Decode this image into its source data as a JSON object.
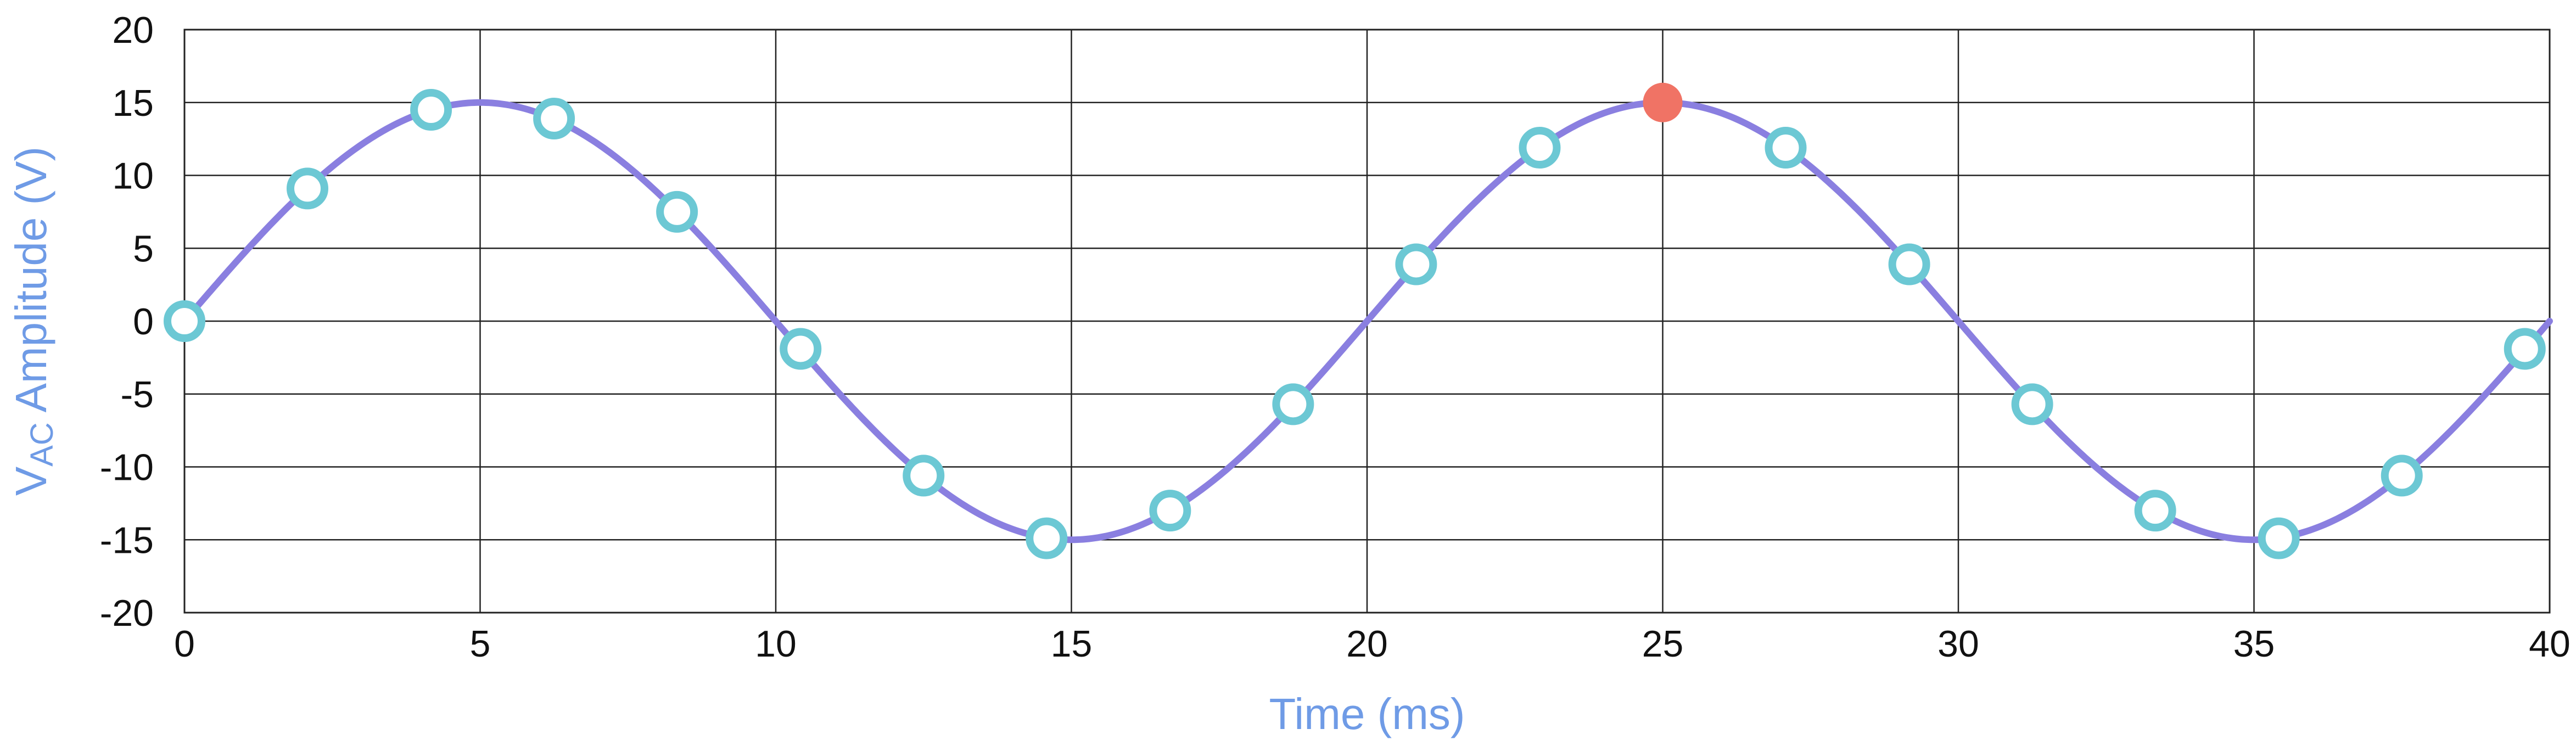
{
  "chart_data": {
    "type": "line",
    "title": "",
    "xlabel": "Time (ms)",
    "ylabel": {
      "main": "V",
      "subscript": "AC",
      "rest": " Amplitude (V)"
    },
    "xlim": [
      0,
      40
    ],
    "ylim": [
      -20,
      20
    ],
    "x_ticks": [
      0,
      5,
      10,
      15,
      20,
      25,
      30,
      35,
      40
    ],
    "y_ticks": [
      20,
      15,
      10,
      5,
      0,
      -5,
      -10,
      -15,
      -20
    ],
    "grid": true,
    "legend": "none",
    "series": [
      {
        "kind": "curve",
        "color": "#8a7fe0",
        "function": "15*sin(2*pi*t/20)",
        "amplitude": 15,
        "period_ms": 20,
        "x_range": [
          0,
          40
        ]
      },
      {
        "kind": "samples",
        "color": "#6cc8d4",
        "marker": "open-circle",
        "points": [
          {
            "x": 0,
            "y": 0
          },
          {
            "x": 2.08,
            "y": 9.1
          },
          {
            "x": 4.17,
            "y": 14.5
          },
          {
            "x": 6.25,
            "y": 13.9
          },
          {
            "x": 8.33,
            "y": 7.5
          },
          {
            "x": 10.42,
            "y": -1.9
          },
          {
            "x": 12.5,
            "y": -10.6
          },
          {
            "x": 14.58,
            "y": -14.9
          },
          {
            "x": 16.67,
            "y": -13.0
          },
          {
            "x": 18.75,
            "y": -5.7
          },
          {
            "x": 20.83,
            "y": 3.9
          },
          {
            "x": 22.92,
            "y": 11.9
          },
          {
            "x": 27.08,
            "y": 11.9
          },
          {
            "x": 29.17,
            "y": 3.9
          },
          {
            "x": 31.25,
            "y": -5.7
          },
          {
            "x": 33.33,
            "y": -13.0
          },
          {
            "x": 35.42,
            "y": -14.9
          },
          {
            "x": 37.5,
            "y": -10.6
          },
          {
            "x": 39.58,
            "y": -1.9
          }
        ]
      },
      {
        "kind": "highlight",
        "color": "#f07365",
        "marker": "filled-circle",
        "points": [
          {
            "x": 25,
            "y": 15
          }
        ]
      }
    ]
  }
}
